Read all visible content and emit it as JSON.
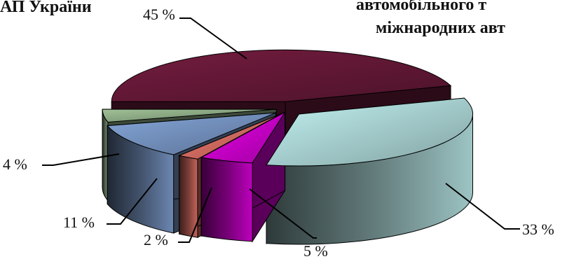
{
  "header": {
    "left_fragment": "АП України",
    "right_fragment_line1": "автомобільного т",
    "right_fragment_line2": "міжнародних авт"
  },
  "colors": {
    "maroon": "#6e1b3c",
    "teal": "#b9e6e6",
    "magenta": "#e000e0",
    "salmon": "#e8766b",
    "steel-blue": "#7f9fd0",
    "sage": "#98b890"
  },
  "chart_data": {
    "type": "pie",
    "title": "",
    "style": "3d-exploded",
    "slices": [
      {
        "label": "45 %",
        "value": 45,
        "color": "#6e1b3c"
      },
      {
        "label": "33 %",
        "value": 33,
        "color": "#b9e6e6"
      },
      {
        "label": "5 %",
        "value": 5,
        "color": "#e000e0"
      },
      {
        "label": "2 %",
        "value": 2,
        "color": "#e8766b"
      },
      {
        "label": "11 %",
        "value": 11,
        "color": "#7f9fd0"
      },
      {
        "label": "4 %",
        "value": 4,
        "color": "#98b890"
      }
    ]
  }
}
